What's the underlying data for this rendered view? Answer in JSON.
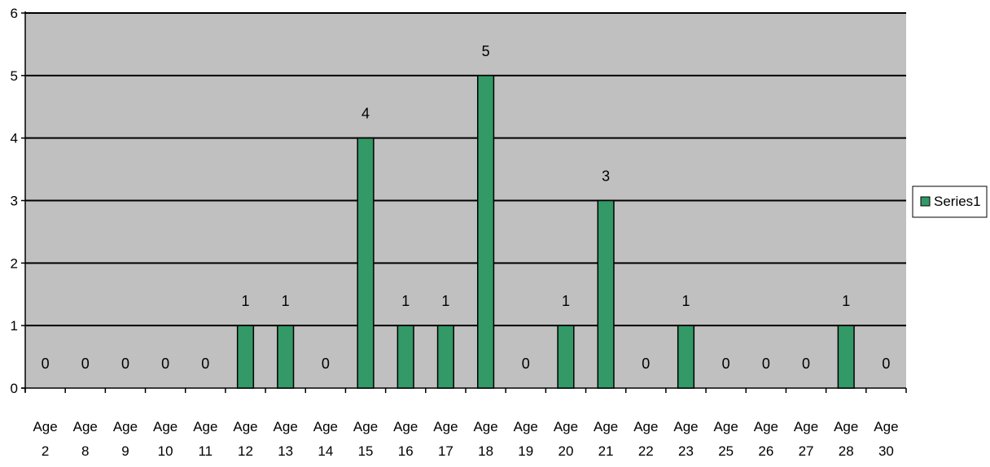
{
  "chart_data": {
    "type": "bar",
    "categories": [
      "Age 2",
      "Age 8",
      "Age 9",
      "Age 10",
      "Age 11",
      "Age 12",
      "Age 13",
      "Age 14",
      "Age 15",
      "Age 16",
      "Age 17",
      "Age 18",
      "Age 19",
      "Age 20",
      "Age 21",
      "Age 22",
      "Age 23",
      "Age 25",
      "Age 26",
      "Age 27",
      "Age 28",
      "Age 30"
    ],
    "series": [
      {
        "name": "Series1",
        "values": [
          0,
          0,
          0,
          0,
          0,
          1,
          1,
          0,
          4,
          1,
          1,
          5,
          0,
          1,
          3,
          0,
          1,
          0,
          0,
          0,
          1,
          0
        ]
      }
    ],
    "title": "",
    "xlabel": "",
    "ylabel": "",
    "ylim": [
      0,
      6
    ],
    "yticks": [
      "0",
      "1",
      "2",
      "3",
      "4",
      "5",
      "6"
    ],
    "grid": true,
    "data_labels": true,
    "legend_position": "right",
    "colors": {
      "bar_fill": "#339966",
      "bar_stroke": "#000000",
      "plot_background": "#c0c0c0",
      "gridline": "#000000",
      "text": "#000000"
    }
  }
}
